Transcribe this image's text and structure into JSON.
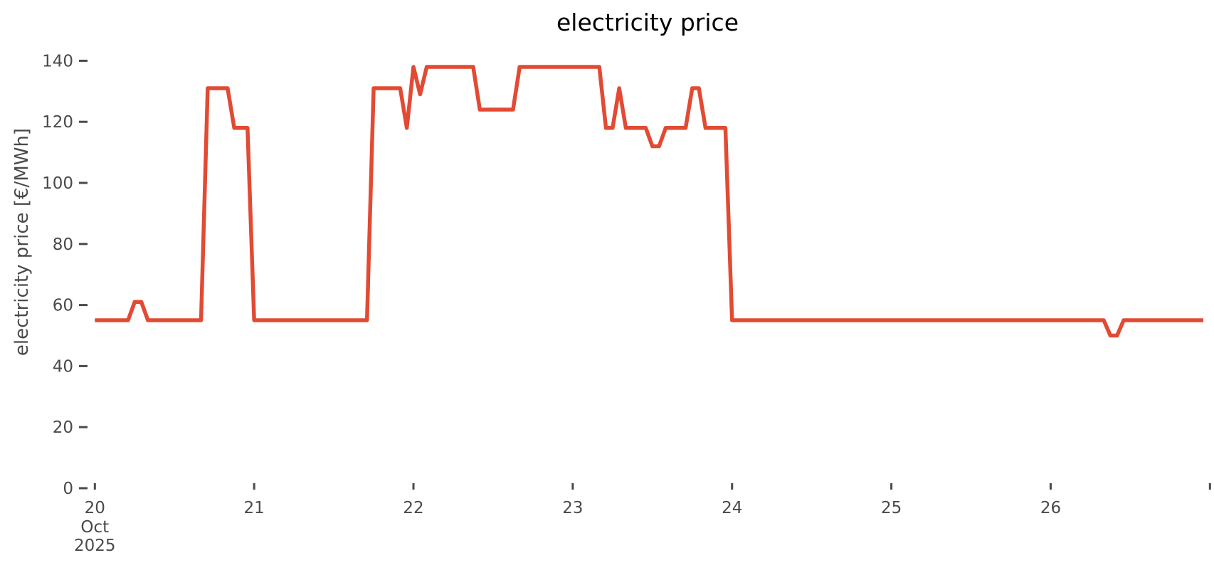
{
  "figure": {
    "background_color": "#ffffff"
  },
  "chart_data": {
    "type": "line",
    "title": "electricity price",
    "ylabel": "electricity price [€/MWh]",
    "xlabel": "",
    "line_color": "#E24A33",
    "text_color": "#4a4a4a",
    "title_color": "#000000",
    "grid": false,
    "legend_position": "none",
    "markers": false,
    "ylim": [
      0,
      147
    ],
    "yticks": [
      0,
      20,
      40,
      60,
      80,
      100,
      120,
      140
    ],
    "x_axis": {
      "unit": "day",
      "tick_labels": [
        "20",
        "21",
        "22",
        "23",
        "24",
        "25",
        "26",
        ""
      ],
      "first_tick_sublabels": [
        "Oct",
        "2025"
      ]
    },
    "series": [
      {
        "name": "electricity price",
        "start": "2025-10-20 00:00",
        "interval_hours": 1,
        "values": [
          55,
          55,
          55,
          55,
          55,
          55,
          61,
          61,
          55,
          55,
          55,
          55,
          55,
          55,
          55,
          55,
          55,
          131,
          131,
          131,
          131,
          118,
          118,
          118,
          55,
          55,
          55,
          55,
          55,
          55,
          55,
          55,
          55,
          55,
          55,
          55,
          55,
          55,
          55,
          55,
          55,
          55,
          131,
          131,
          131,
          131,
          131,
          118,
          138,
          129,
          138,
          138,
          138,
          138,
          138,
          138,
          138,
          138,
          124,
          124,
          124,
          124,
          124,
          124,
          138,
          138,
          138,
          138,
          138,
          138,
          138,
          138,
          138,
          138,
          138,
          138,
          138,
          118,
          118,
          131,
          118,
          118,
          118,
          118,
          112,
          112,
          118,
          118,
          118,
          118,
          131,
          131,
          118,
          118,
          118,
          118,
          55,
          55,
          55,
          55,
          55,
          55,
          55,
          55,
          55,
          55,
          55,
          55,
          55,
          55,
          55,
          55,
          55,
          55,
          55,
          55,
          55,
          55,
          55,
          55,
          55,
          55,
          55,
          55,
          55,
          55,
          55,
          55,
          55,
          55,
          55,
          55,
          55,
          55,
          55,
          55,
          55,
          55,
          55,
          55,
          55,
          55,
          55,
          55,
          55,
          55,
          55,
          55,
          55,
          55,
          55,
          55,
          55,
          50,
          50,
          55,
          55,
          55,
          55,
          55,
          55,
          55,
          55,
          55,
          55,
          55,
          55,
          55
        ]
      }
    ]
  }
}
